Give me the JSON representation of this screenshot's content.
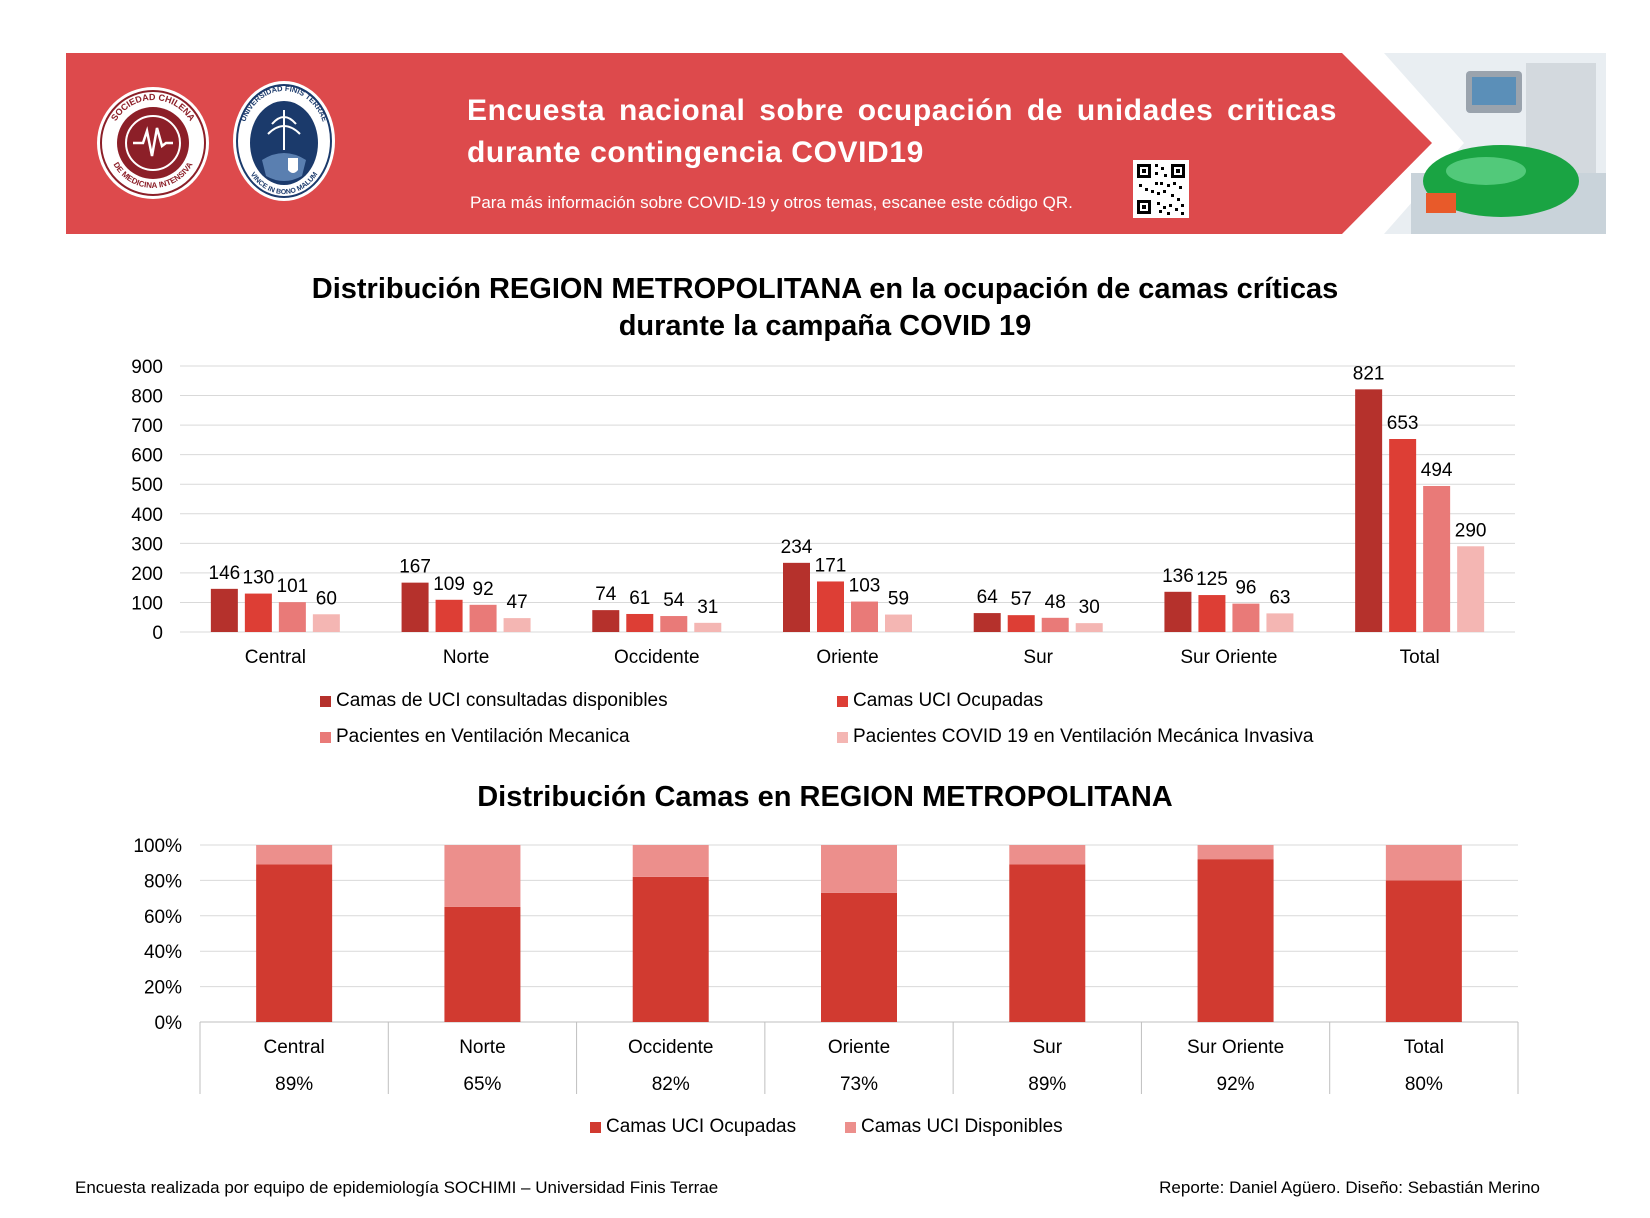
{
  "header": {
    "title": "Encuesta nacional sobre ocupación de unidades criticas durante contingencia COVID19",
    "subtitle": "Para más información sobre COVID-19 y otros temas, escanee este código QR.",
    "banner_color": "#dd4a4c",
    "logo1_text_top": "SOCIEDAD CHILENA",
    "logo1_text_bottom": "DE MEDICINA INTENSIVA",
    "logo2_text_top": "UNIVERSIDAD FINIS TERRAE",
    "logo2_text_bottom": "VINCE IN BONO MALUM"
  },
  "chart_data": [
    {
      "type": "bar",
      "title": "Distribución REGION METROPOLITANA en la ocupación de camas críticas durante la campaña COVID 19",
      "title_line1": "Distribución REGION METROPOLITANA en la ocupación de camas críticas",
      "title_line2": "durante la campaña COVID 19",
      "categories": [
        "Central",
        "Norte",
        "Occidente",
        "Oriente",
        "Sur",
        "Sur Oriente",
        "Total"
      ],
      "series": [
        {
          "name": "Camas de UCI consultadas disponibles",
          "color": "#b5312c",
          "values": [
            146,
            167,
            74,
            234,
            64,
            136,
            821
          ]
        },
        {
          "name": "Camas UCI Ocupadas",
          "color": "#dd3e35",
          "values": [
            130,
            109,
            61,
            171,
            57,
            125,
            653
          ]
        },
        {
          "name": "Pacientes en Ventilación Mecanica",
          "color": "#e97a78",
          "values": [
            101,
            92,
            54,
            103,
            48,
            96,
            494
          ]
        },
        {
          "name": "Pacientes COVID 19 en Ventilación Mecánica Invasiva",
          "color": "#f4b6b3",
          "values": [
            60,
            47,
            31,
            59,
            30,
            63,
            290
          ]
        }
      ],
      "ylim": [
        0,
        900
      ],
      "yticks": [
        0,
        100,
        200,
        300,
        400,
        500,
        600,
        700,
        800,
        900
      ],
      "xlabel": "",
      "ylabel": "",
      "grid": true,
      "legend": "bottom"
    },
    {
      "type": "bar",
      "stacked": true,
      "title": "Distribución Camas en REGION METROPOLITANA",
      "categories": [
        "Central",
        "Norte",
        "Occidente",
        "Oriente",
        "Sur",
        "Sur Oriente",
        "Total"
      ],
      "series": [
        {
          "name": "Camas UCI Ocupadas",
          "color": "#d13a30",
          "values": [
            89,
            65,
            82,
            73,
            89,
            92,
            80
          ]
        },
        {
          "name": "Camas UCI Disponibles",
          "color": "#ec8f8c",
          "values": [
            11,
            35,
            18,
            27,
            11,
            8,
            20
          ]
        }
      ],
      "table_row": [
        "89%",
        "65%",
        "82%",
        "73%",
        "89%",
        "92%",
        "80%"
      ],
      "ylim": [
        0,
        100
      ],
      "yticks": [
        "0%",
        "20%",
        "40%",
        "60%",
        "80%",
        "100%"
      ],
      "xlabel": "",
      "ylabel": "",
      "grid": true,
      "legend": "bottom"
    }
  ],
  "footer": {
    "left": "Encuesta realizada por equipo de epidemiología SOCHIMI – Universidad Finis Terrae",
    "right": "Reporte: Daniel Agüero. Diseño: Sebastián Merino"
  }
}
